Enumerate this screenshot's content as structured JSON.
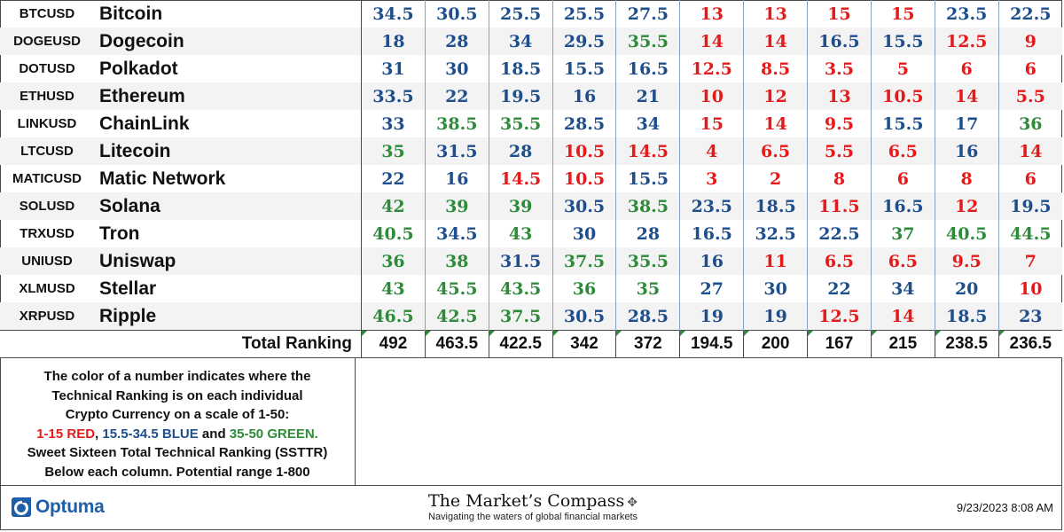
{
  "rows": [
    {
      "symbol": "BTCUSD",
      "name": "Bitcoin",
      "values": [
        "34.5",
        "30.5",
        "25.5",
        "25.5",
        "27.5",
        "13",
        "13",
        "15",
        "15",
        "23.5",
        "22.5"
      ]
    },
    {
      "symbol": "DOGEUSD",
      "name": "Dogecoin",
      "values": [
        "18",
        "28",
        "34",
        "29.5",
        "35.5",
        "14",
        "14",
        "16.5",
        "15.5",
        "12.5",
        "9"
      ]
    },
    {
      "symbol": "DOTUSD",
      "name": "Polkadot",
      "values": [
        "31",
        "30",
        "18.5",
        "15.5",
        "16.5",
        "12.5",
        "8.5",
        "3.5",
        "5",
        "6",
        "6"
      ]
    },
    {
      "symbol": "ETHUSD",
      "name": "Ethereum",
      "values": [
        "33.5",
        "22",
        "19.5",
        "16",
        "21",
        "10",
        "12",
        "13",
        "10.5",
        "14",
        "5.5"
      ]
    },
    {
      "symbol": "LINKUSD",
      "name": "ChainLink",
      "values": [
        "33",
        "38.5",
        "35.5",
        "28.5",
        "34",
        "15",
        "14",
        "9.5",
        "15.5",
        "17",
        "36"
      ]
    },
    {
      "symbol": "LTCUSD",
      "name": "Litecoin",
      "values": [
        "35",
        "31.5",
        "28",
        "10.5",
        "14.5",
        "4",
        "6.5",
        "5.5",
        "6.5",
        "16",
        "14"
      ]
    },
    {
      "symbol": "MATICUSD",
      "name": "Matic Network",
      "values": [
        "22",
        "16",
        "14.5",
        "10.5",
        "15.5",
        "3",
        "2",
        "8",
        "6",
        "8",
        "6"
      ]
    },
    {
      "symbol": "SOLUSD",
      "name": "Solana",
      "values": [
        "42",
        "39",
        "39",
        "30.5",
        "38.5",
        "23.5",
        "18.5",
        "11.5",
        "16.5",
        "12",
        "19.5"
      ]
    },
    {
      "symbol": "TRXUSD",
      "name": "Tron",
      "values": [
        "40.5",
        "34.5",
        "43",
        "30",
        "28",
        "16.5",
        "32.5",
        "22.5",
        "37",
        "40.5",
        "44.5"
      ]
    },
    {
      "symbol": "UNIUSD",
      "name": "Uniswap",
      "values": [
        "36",
        "38",
        "31.5",
        "37.5",
        "35.5",
        "16",
        "11",
        "6.5",
        "6.5",
        "9.5",
        "7"
      ]
    },
    {
      "symbol": "XLMUSD",
      "name": "Stellar",
      "values": [
        "43",
        "45.5",
        "43.5",
        "36",
        "35",
        "27",
        "30",
        "22",
        "34",
        "20",
        "10"
      ]
    },
    {
      "symbol": "XRPUSD",
      "name": "Ripple",
      "values": [
        "46.5",
        "42.5",
        "37.5",
        "30.5",
        "28.5",
        "19",
        "19",
        "12.5",
        "14",
        "18.5",
        "23"
      ]
    }
  ],
  "total": {
    "label": "Total Ranking",
    "values": [
      "492",
      "463.5",
      "422.5",
      "342",
      "372",
      "194.5",
      "200",
      "167",
      "215",
      "238.5",
      "236.5"
    ]
  },
  "legend": {
    "line1": "The color of a number indicates where the",
    "line2": "Technical Ranking is on each individual",
    "line3": "Crypto Currency on a scale of 1-50:",
    "red_range": "1-15 RED",
    "sep1": ", ",
    "blue_range": "15.5-34.5 BLUE",
    "sep2": " and ",
    "green_range": "35-50 GREEN.",
    "line5": "Sweet Sixteen Total Technical Ranking (SSTTR)",
    "line6": "Below each column.   Potential range 1-800"
  },
  "footer": {
    "logo_text": "Optuma",
    "brand_title": "The Market’s Compass",
    "brand_subtitle": "Navigating the waters of global financial markets",
    "timestamp": "9/23/2023 8:08 AM"
  },
  "colors": {
    "red": "#e31b1b",
    "blue": "#1f4e8c",
    "green": "#2e8b3a",
    "logo_blue": "#1f5fa8"
  },
  "icons": {
    "logo": "optuma-logo-icon",
    "compass": "compass-rose-icon"
  }
}
